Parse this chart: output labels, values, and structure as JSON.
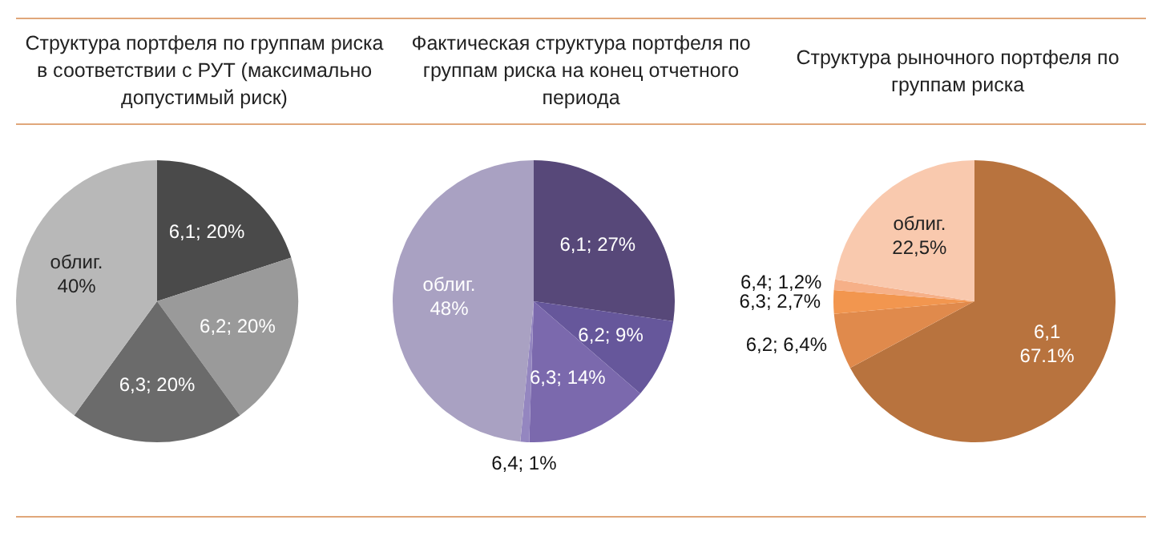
{
  "chart_data": [
    {
      "type": "pie",
      "title": "Структура портфеля по группам риска в соответствии с РУТ (максимально допустимый риск)",
      "categories": [
        "6,1",
        "6,2",
        "6,3",
        "облиг."
      ],
      "values": [
        20,
        20,
        20,
        40
      ],
      "colors": [
        "#4a4a4a",
        "#9a9a9a",
        "#6b6b6b",
        "#b8b8b8"
      ],
      "value_labels": [
        "20%",
        "20%",
        "20%",
        "40%"
      ],
      "legend": false
    },
    {
      "type": "pie",
      "title": "Фактическая структура портфеля по группам риска на конец отчетного периода",
      "categories": [
        "6,1",
        "6,2",
        "6,3",
        "6,4",
        "облиг."
      ],
      "values": [
        27,
        9,
        14,
        1,
        48
      ],
      "colors": [
        "#574879",
        "#66579b",
        "#7b69ad",
        "#9486c0",
        "#a9a1c2"
      ],
      "value_labels": [
        "27%",
        "9%",
        "14%",
        "1%",
        "48%"
      ],
      "legend": false
    },
    {
      "type": "pie",
      "title": "Структура рыночного портфеля по группам риска",
      "categories": [
        "6,1",
        "6,2",
        "6,3",
        "6,4",
        "облиг."
      ],
      "values": [
        67.1,
        6.4,
        2.7,
        1.2,
        22.5
      ],
      "colors": [
        "#b8733e",
        "#e08a4c",
        "#f2964f",
        "#f6b088",
        "#f9c9ae"
      ],
      "value_labels": [
        "67.1%",
        "6,4%",
        "2,7%",
        "1,2%",
        "22,5%"
      ],
      "legend": false
    }
  ]
}
